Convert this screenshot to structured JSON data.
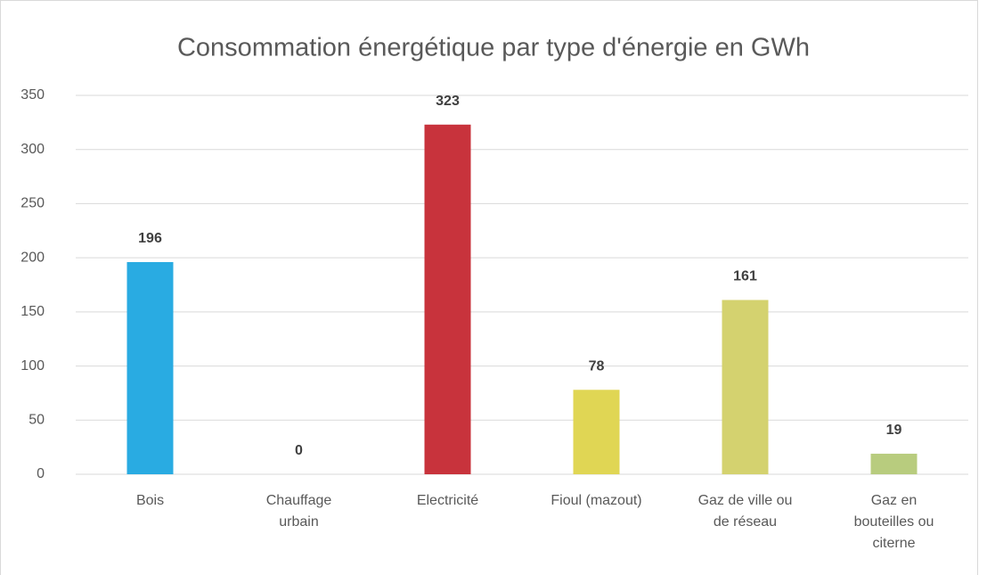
{
  "chart_data": {
    "type": "bar",
    "title": "Consommation énergétique par type d'énergie en GWh",
    "categories": [
      "Bois",
      "Chauffage urbain",
      "Electricité",
      "Fioul (mazout)",
      "Gaz de ville ou de réseau",
      "Gaz en bouteilles ou citerne"
    ],
    "values": [
      196,
      0,
      323,
      78,
      161,
      19
    ],
    "colors": [
      "#29abe2",
      "#8cc63f",
      "#c8333c",
      "#e0d654",
      "#d4d26f",
      "#b8cc7e"
    ],
    "ylim": [
      0,
      350
    ],
    "yticks": [
      0,
      50,
      100,
      150,
      200,
      250,
      300,
      350
    ],
    "grid": true
  }
}
